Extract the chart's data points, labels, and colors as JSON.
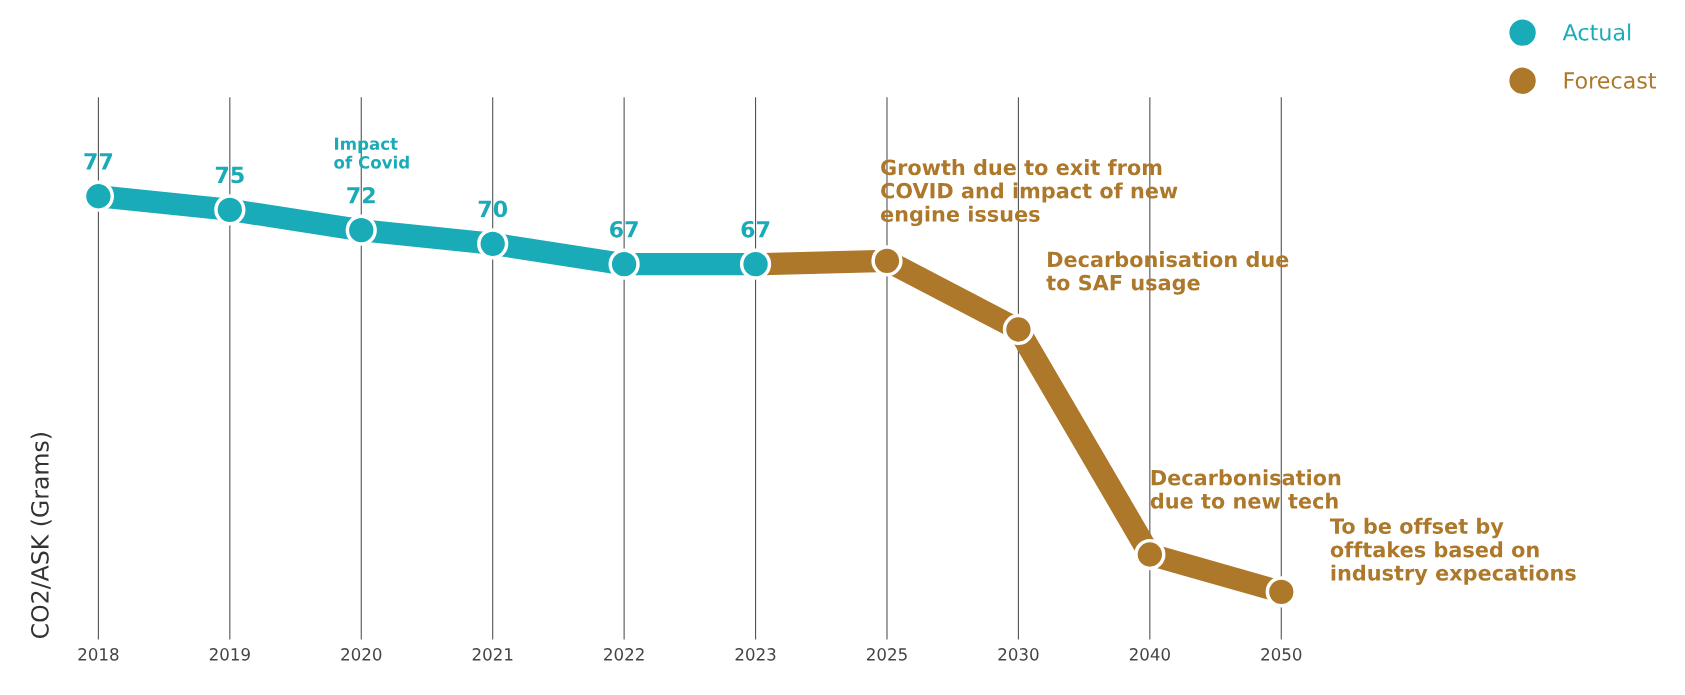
{
  "chart_data": {
    "type": "line",
    "ylabel": "CO2/ASK (Grams)",
    "categories": [
      "2018",
      "2019",
      "2020",
      "2021",
      "2022",
      "2023",
      "2025",
      "2030",
      "2040",
      "2050"
    ],
    "series": [
      {
        "name": "Actual",
        "color": "#1aabb8",
        "values": [
          77,
          75,
          72,
          70,
          67,
          67,
          null,
          null,
          null,
          null
        ],
        "value_labels": [
          "77",
          "75",
          "72",
          "70",
          "67",
          "67",
          null,
          null,
          null,
          null
        ]
      },
      {
        "name": "Forecast",
        "color": "#ad7829",
        "values": [
          null,
          null,
          null,
          null,
          null,
          67,
          67.5,
          57.4,
          24.3,
          18.8
        ]
      }
    ],
    "annotations": [
      "Impact\nof Covid",
      "Growth due to exit from\nCOVID and impact of new\nengine issues",
      "Decarbonisation due\nto SAF usage",
      "Decarbonisation\ndue to new tech",
      "To be offset by\nofftakes based on\nindustry expecations"
    ],
    "marker": "circle",
    "grid": "x",
    "legend": "top right"
  }
}
